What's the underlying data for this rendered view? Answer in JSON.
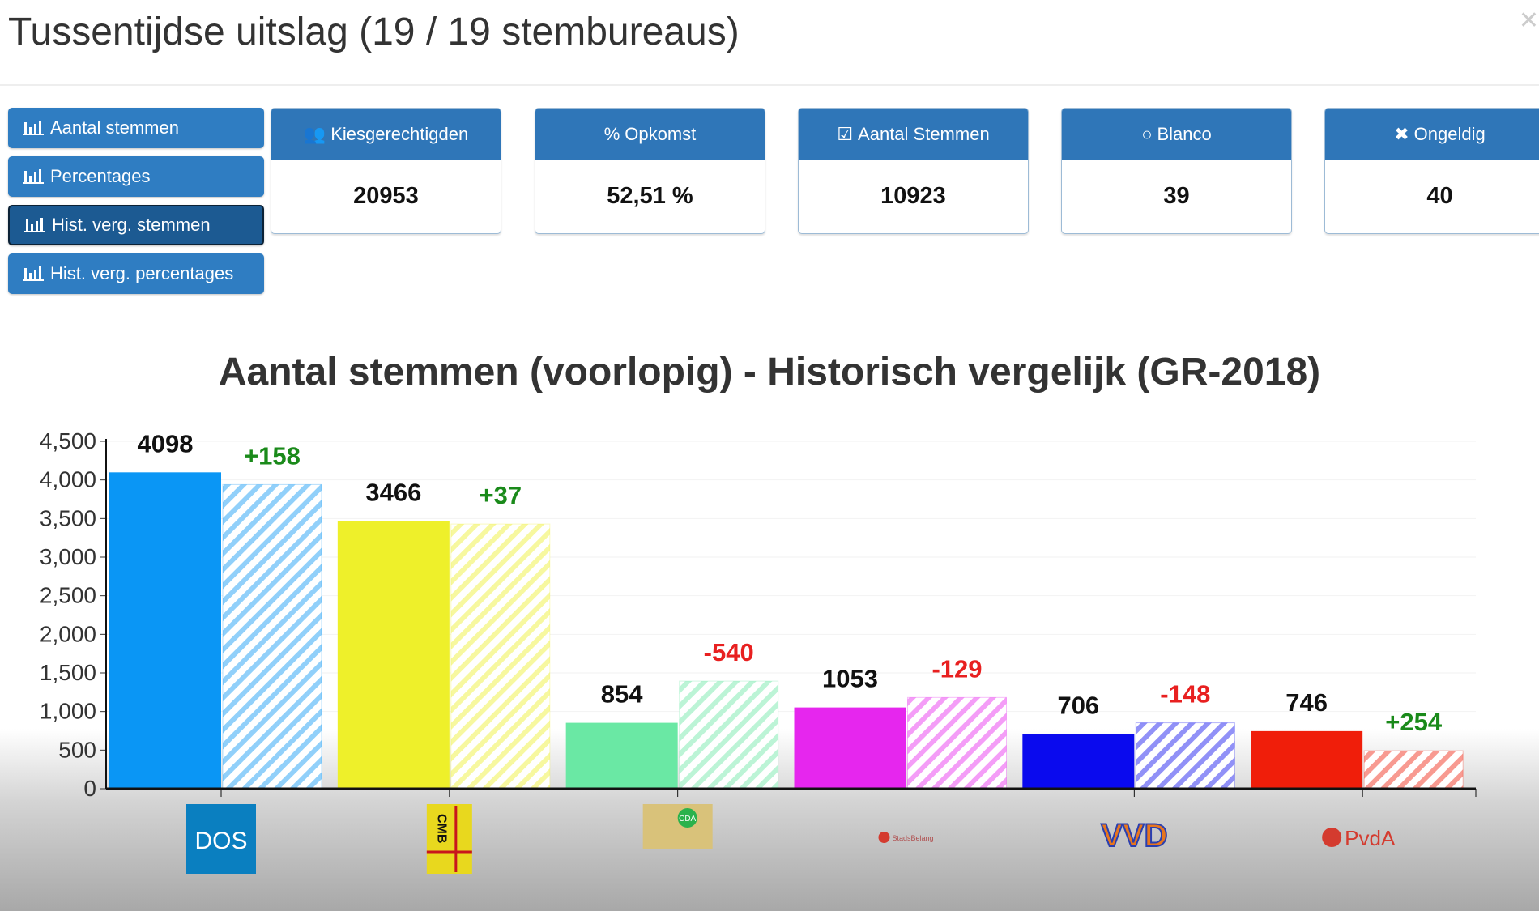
{
  "header": {
    "title": "Tussentijdse uitslag (19 / 19 stembureaus)",
    "close_icon": "close-icon"
  },
  "nav": [
    {
      "label": "Aantal stemmen",
      "icon": "bar-chart-icon",
      "active": false
    },
    {
      "label": "Percentages",
      "icon": "bar-chart-icon",
      "active": false
    },
    {
      "label": "Hist. verg. stemmen",
      "icon": "bar-chart-icon",
      "active": true
    },
    {
      "label": "Hist. verg. percentages",
      "icon": "bar-chart-icon",
      "active": false
    }
  ],
  "cards": [
    {
      "icon": "users-icon",
      "glyph": "👥",
      "label": "Kiesgerechtigden",
      "value": "20953"
    },
    {
      "icon": "percent-icon",
      "glyph": "%",
      "label": "Opkomst",
      "value": "52,51 %"
    },
    {
      "icon": "check-square-icon",
      "glyph": "☑",
      "label": "Aantal Stemmen",
      "value": "10923"
    },
    {
      "icon": "circle-icon",
      "glyph": "○",
      "label": "Blanco",
      "value": "39"
    },
    {
      "icon": "times-icon",
      "glyph": "✖",
      "label": "Ongeldig",
      "value": "40"
    }
  ],
  "chart_data": {
    "type": "bar",
    "title": "Aantal stemmen (voorlopig) - Historisch vergelijk (GR-2018)",
    "categories": [
      "DOS",
      "CMB",
      "CDA",
      "Stadsbelang",
      "VVD",
      "PvdA"
    ],
    "logo_text": [
      "DOS",
      "CMB",
      "CDA",
      "StadsBelang",
      "VVD",
      "PvdA"
    ],
    "colors": [
      "#0a96f5",
      "#eef02a",
      "#6ae8a4",
      "#e626ee",
      "#0a0aee",
      "#f01e0a"
    ],
    "series": [
      {
        "values": [
          4098,
          3466,
          854,
          1053,
          706,
          746
        ]
      },
      {
        "values": [
          3940,
          3429,
          1394,
          1182,
          854,
          492
        ]
      }
    ],
    "difference_labels": [
      "+158",
      "+37",
      "-540",
      "-129",
      "-148",
      "+254"
    ],
    "positive_color": "#1a8a1a",
    "negative_color": "#e82020",
    "yticks": [
      "0",
      "500",
      "1,000",
      "1,500",
      "2,000",
      "2,500",
      "3,000",
      "3,500",
      "4,000",
      "4,500"
    ],
    "ylim": [
      0,
      4500
    ],
    "grid": true
  }
}
